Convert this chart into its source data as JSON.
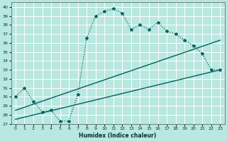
{
  "xlabel": "Humidex (Indice chaleur)",
  "bg_color": "#b8e8e0",
  "grid_color": "#ffffff",
  "line_color": "#006060",
  "xlim": [
    -0.5,
    23.5
  ],
  "ylim": [
    27,
    40.5
  ],
  "xticks": [
    0,
    1,
    2,
    3,
    4,
    5,
    6,
    7,
    8,
    9,
    10,
    11,
    12,
    13,
    14,
    15,
    16,
    17,
    18,
    19,
    20,
    21,
    22,
    23
  ],
  "yticks": [
    27,
    28,
    29,
    30,
    31,
    32,
    33,
    34,
    35,
    36,
    37,
    38,
    39,
    40
  ],
  "line_main_x": [
    0,
    1,
    2,
    3,
    4,
    5,
    6,
    7,
    8,
    9,
    10,
    11,
    12,
    13,
    14,
    15,
    16,
    17,
    18,
    19,
    20,
    21,
    22,
    23
  ],
  "line_main_y": [
    30.0,
    31.0,
    29.5,
    28.3,
    28.5,
    27.3,
    27.3,
    30.3,
    36.5,
    39.0,
    39.5,
    39.8,
    39.3,
    37.5,
    38.0,
    37.5,
    38.3,
    37.3,
    37.0,
    36.3,
    35.7,
    34.8,
    33.0,
    33.0
  ],
  "line2_x": [
    0,
    23
  ],
  "line2_y": [
    28.5,
    36.3
  ],
  "line3_x": [
    0,
    23
  ],
  "line3_y": [
    27.5,
    33.0
  ]
}
